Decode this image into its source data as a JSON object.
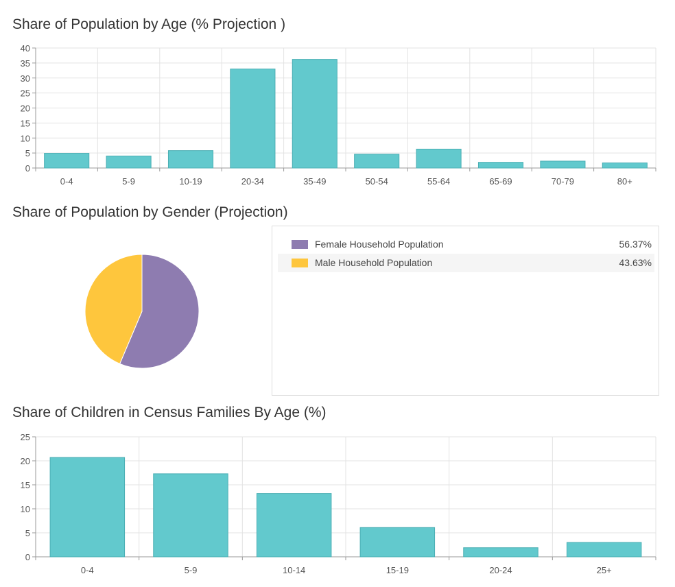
{
  "titles": {
    "age": "Share of Population by Age (% Projection )",
    "gender": "Share of Population by Gender (Projection)",
    "children": "Share of Children in Census Families By Age (%)"
  },
  "colors": {
    "bar": "#62c9cd",
    "bar_stroke": "#4aaeb3",
    "female": "#8e7cb0",
    "male": "#fec63d",
    "grid": "#e3e3e3"
  },
  "chart_data": [
    {
      "type": "bar",
      "categories": [
        "0-4",
        "5-9",
        "10-19",
        "20-34",
        "35-49",
        "50-54",
        "55-64",
        "65-69",
        "70-79",
        "80+"
      ],
      "values": [
        4.9,
        4.0,
        5.8,
        33.0,
        36.2,
        4.6,
        6.3,
        1.9,
        2.3,
        1.7
      ],
      "ylim": [
        0,
        40
      ],
      "yticks": [
        0,
        5,
        10,
        15,
        20,
        25,
        30,
        35,
        40
      ],
      "grid": true
    },
    {
      "type": "pie",
      "labels": [
        "Female Household Population",
        "Male Household Population"
      ],
      "values": [
        56.37,
        43.63
      ],
      "display": [
        "56.37%",
        "43.63%"
      ],
      "legend": "right"
    },
    {
      "type": "bar",
      "categories": [
        "0-4",
        "5-9",
        "10-14",
        "15-19",
        "20-24",
        "25+"
      ],
      "values": [
        20.7,
        17.3,
        13.2,
        6.1,
        1.9,
        3.0
      ],
      "ylim": [
        0,
        25
      ],
      "yticks": [
        0,
        5,
        10,
        15,
        20,
        25
      ],
      "grid": true
    }
  ]
}
